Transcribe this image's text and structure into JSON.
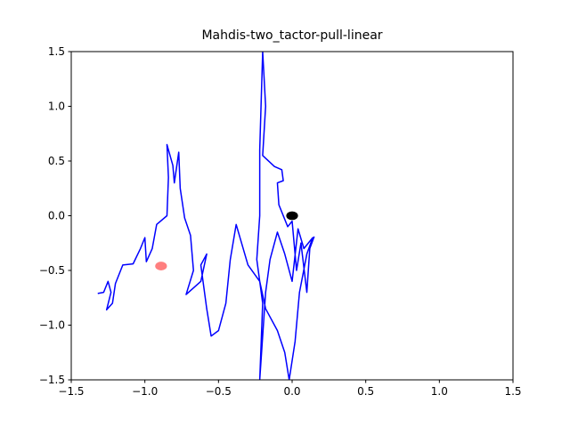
{
  "chart_data": {
    "type": "line",
    "title": "Mahdis-two_tactor-pull-linear",
    "x": [
      -1.32,
      -1.28,
      -1.25,
      -1.23,
      -1.26,
      -1.22,
      -1.2,
      -1.15,
      -1.08,
      -1.03,
      -1.0,
      -0.99,
      -0.95,
      -0.92,
      -0.85,
      -0.84,
      -0.85,
      -0.81,
      -0.8,
      -0.77,
      -0.76,
      -0.73,
      -0.69,
      -0.67,
      -0.72,
      -0.62,
      -0.58,
      -0.62,
      -0.58,
      -0.55,
      -0.5,
      -0.45,
      -0.42,
      -0.38,
      -0.3,
      -0.22,
      -0.18,
      -0.1,
      -0.05,
      -0.02,
      0.02,
      0.05,
      0.1,
      0.14,
      0.08,
      0.04,
      0.0,
      -0.05,
      -0.1,
      -0.15,
      -0.18,
      -0.22,
      -0.2,
      -0.24,
      -0.22,
      -0.22,
      -0.2,
      -0.18,
      -0.2,
      -0.12,
      -0.07,
      -0.06,
      -0.1,
      -0.09,
      -0.03,
      0.0,
      0.03,
      0.06,
      0.1,
      0.12,
      0.15
    ],
    "series": [
      {
        "color": "#0000ff",
        "values": [
          -0.71,
          -0.7,
          -0.6,
          -0.7,
          -0.86,
          -0.8,
          -0.62,
          -0.45,
          -0.44,
          -0.3,
          -0.2,
          -0.42,
          -0.3,
          -0.08,
          0.0,
          0.35,
          0.65,
          0.46,
          0.3,
          0.58,
          0.25,
          -0.02,
          -0.18,
          -0.5,
          -0.72,
          -0.6,
          -0.35,
          -0.45,
          -0.85,
          -1.1,
          -1.05,
          -0.8,
          -0.4,
          -0.08,
          -0.45,
          -0.6,
          -0.85,
          -1.05,
          -1.25,
          -1.5,
          -1.15,
          -0.7,
          -0.35,
          -0.2,
          -0.3,
          -0.12,
          -0.6,
          -0.35,
          -0.15,
          -0.4,
          -0.7,
          -1.5,
          -0.8,
          -0.4,
          0.0,
          0.6,
          1.5,
          1.0,
          0.55,
          0.45,
          0.42,
          0.32,
          0.3,
          0.1,
          -0.1,
          -0.05,
          -0.5,
          -0.25,
          -0.7,
          -0.3,
          -0.19
        ]
      }
    ],
    "points": [
      {
        "x": -0.89,
        "y": -0.46,
        "r": 0.04,
        "color": "#ff0000",
        "alpha": 0.5
      },
      {
        "x": 0.0,
        "y": 0.0,
        "r": 0.04,
        "color": "#000000",
        "alpha": 1
      }
    ],
    "xlim": [
      -1.5,
      1.5
    ],
    "ylim": [
      -1.5,
      1.5
    ],
    "xticks": [
      {
        "value": -1.5,
        "label": "−1.5"
      },
      {
        "value": -1.0,
        "label": "−1.0"
      },
      {
        "value": -0.5,
        "label": "−0.5"
      },
      {
        "value": 0,
        "label": "0.0"
      },
      0.5,
      {
        "value": 1,
        "label": "1.0"
      },
      1.5
    ],
    "yticks": [
      {
        "value": -1.5,
        "label": "−1.5"
      },
      {
        "value": -1.0,
        "label": "−1.0"
      },
      {
        "value": -0.5,
        "label": "−0.5"
      },
      {
        "value": 0,
        "label": "0.0"
      },
      0.5,
      {
        "value": 1,
        "label": "1.0"
      },
      1.5
    ]
  }
}
